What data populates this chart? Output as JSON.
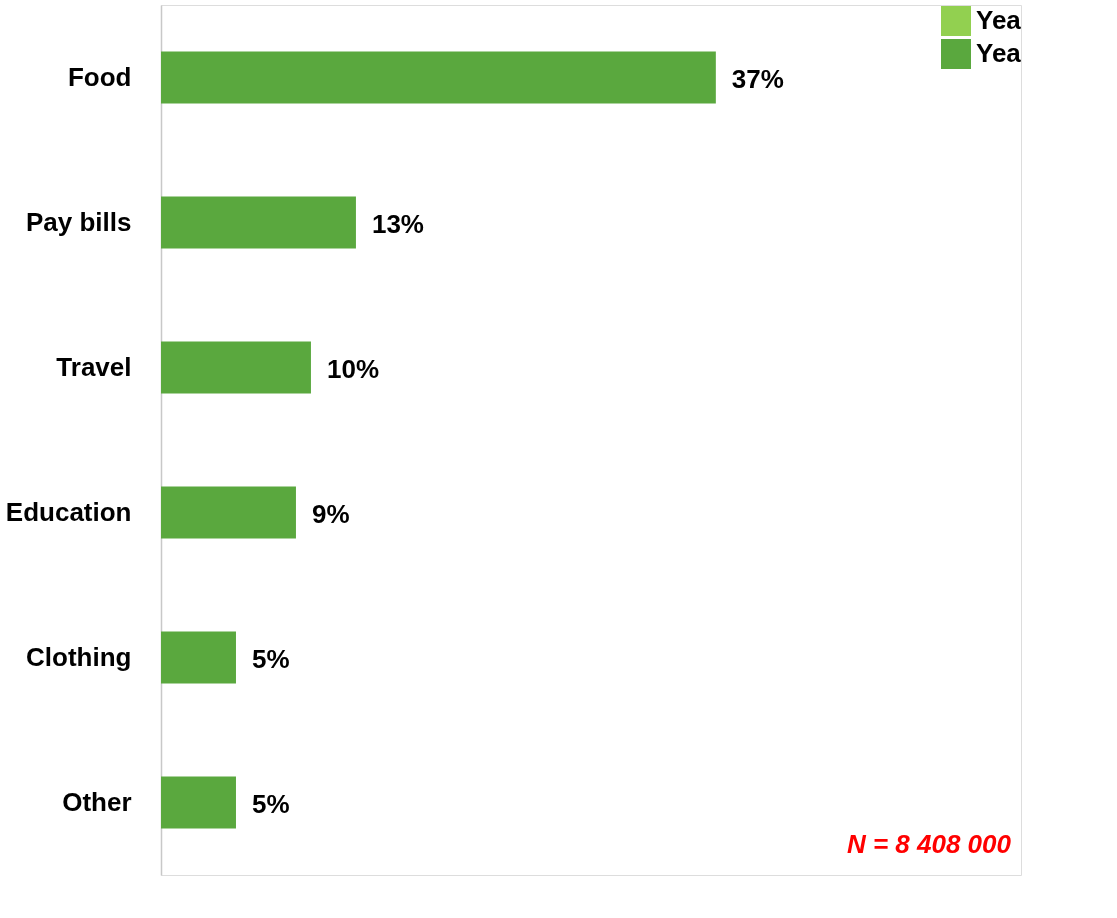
{
  "chart_data": {
    "type": "bar",
    "orientation": "horizontal",
    "categories": [
      "Food",
      "Pay bills",
      "Travel",
      "Education",
      "Clothing",
      "Other"
    ],
    "series": [
      {
        "name": "Yea",
        "color": "#92d050",
        "values": [
          null,
          null,
          null,
          null,
          null,
          null
        ]
      },
      {
        "name": "Yea",
        "color": "#5aa83e",
        "values": [
          37,
          13,
          10,
          9,
          5,
          5
        ],
        "value_labels": [
          "37%",
          "13%",
          "10%",
          "9%",
          "5%",
          "5%"
        ]
      }
    ],
    "annotations": [
      "N = 8 408 000"
    ],
    "legend": "top right",
    "grid": false
  }
}
